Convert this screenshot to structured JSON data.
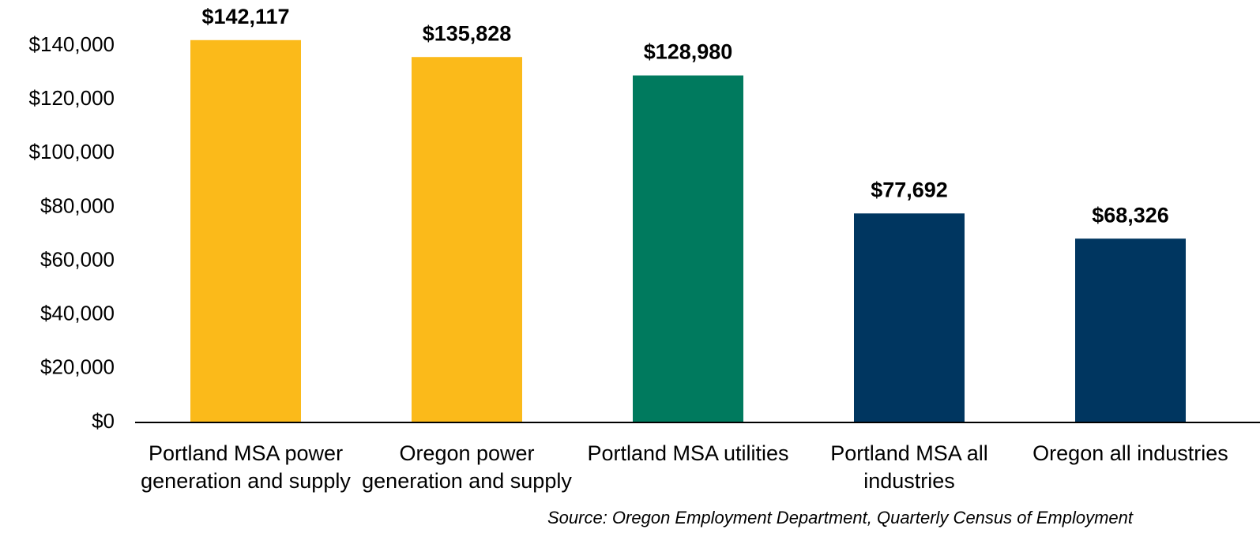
{
  "chart_data": {
    "type": "bar",
    "categories": [
      "Portland MSA power generation and supply",
      "Oregon power generation and supply",
      "Portland MSA utilities",
      "Portland MSA all industries",
      "Oregon all industries"
    ],
    "values": [
      142117,
      135828,
      128980,
      77692,
      68326
    ],
    "value_labels": [
      "$142,117",
      "$135,828",
      "$128,980",
      "$77,692",
      "$68,326"
    ],
    "colors": [
      "#fbba1a",
      "#fbba1a",
      "#007a5e",
      "#003660",
      "#003660"
    ],
    "ylim": [
      0,
      140000
    ],
    "yticks": [
      {
        "value": 0,
        "label": "$0"
      },
      {
        "value": 20000,
        "label": "$20,000"
      },
      {
        "value": 40000,
        "label": "$40,000"
      },
      {
        "value": 60000,
        "label": "$60,000"
      },
      {
        "value": 80000,
        "label": "$80,000"
      },
      {
        "value": 100000,
        "label": "$100,000"
      },
      {
        "value": 120000,
        "label": "$120,000"
      },
      {
        "value": 140000,
        "label": "$140,000"
      }
    ],
    "grid": false,
    "source": "Source: Oregon Employment Department, Quarterly Census of Employment"
  }
}
